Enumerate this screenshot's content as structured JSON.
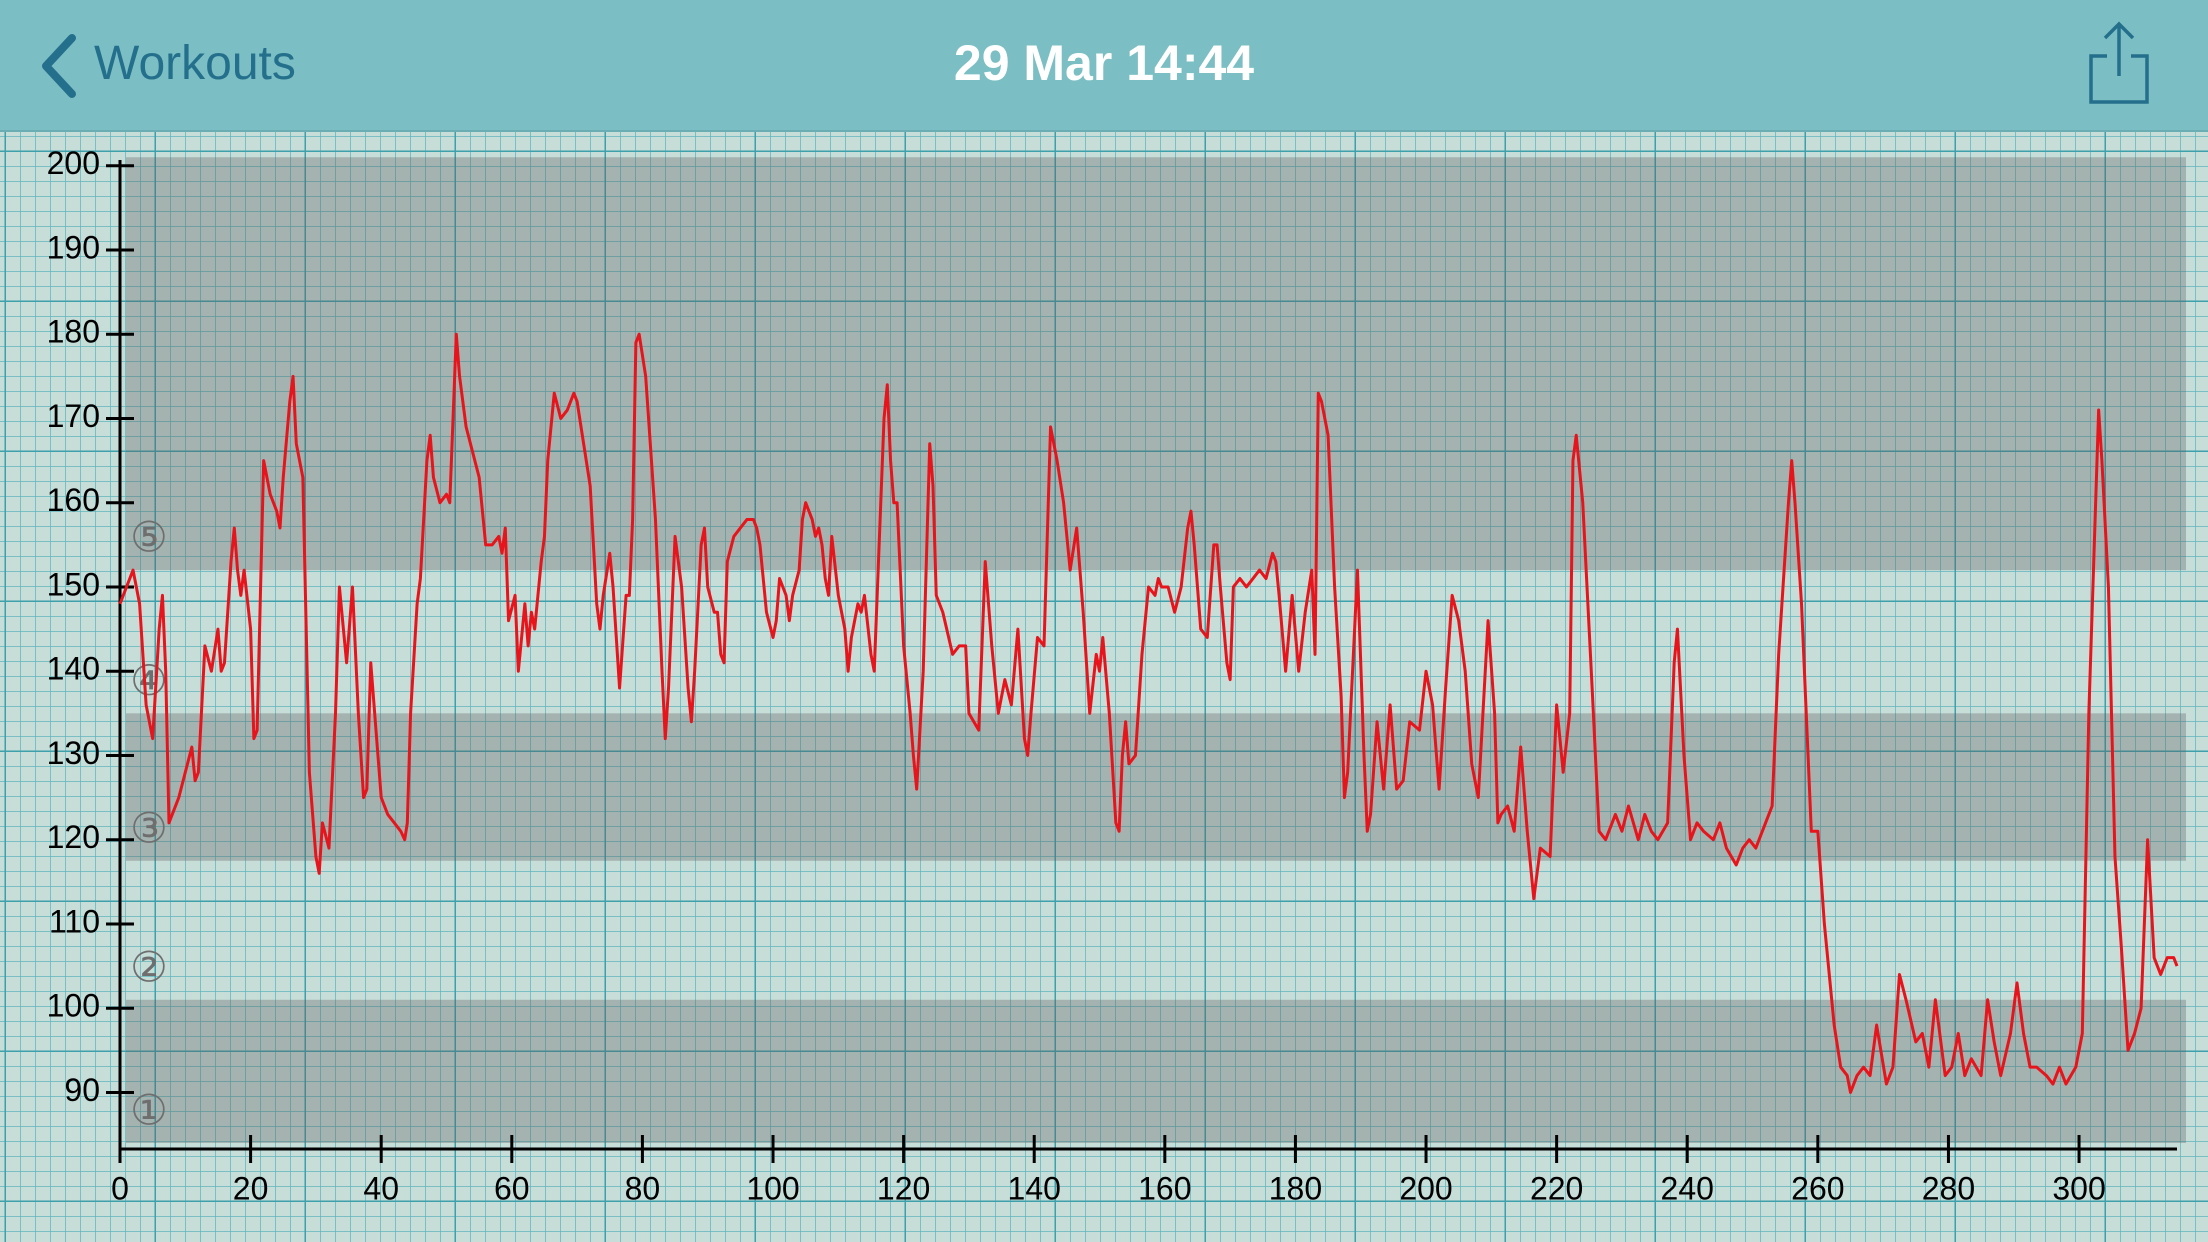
{
  "nav": {
    "back_label": "Workouts",
    "title": "29 Mar 14:44"
  },
  "chart_data": {
    "type": "line",
    "x": [
      0,
      2,
      3,
      4,
      5,
      6,
      6.5,
      7,
      7.5,
      8,
      9,
      10,
      11,
      11.5,
      12,
      13,
      14,
      15,
      15.5,
      16,
      17,
      17.5,
      18,
      18.5,
      19,
      20,
      20.5,
      21,
      22,
      23,
      24,
      24.5,
      25,
      26,
      26.5,
      27,
      28,
      29,
      30,
      30.5,
      31,
      32,
      33,
      33.6,
      34.7,
      35.6,
      36.5,
      37.3,
      37.8,
      38.4,
      39.2,
      40,
      41,
      42,
      43,
      43.6,
      44,
      44.5,
      45.5,
      46,
      47,
      47.5,
      48,
      49,
      50,
      50.5,
      51,
      51.5,
      52,
      53,
      54,
      55,
      56,
      57,
      58,
      58.5,
      59,
      59.5,
      60.5,
      61,
      62,
      62.5,
      63,
      63.5,
      64.5,
      65,
      65.5,
      66.5,
      67.5,
      68.5,
      69.5,
      70,
      71,
      72,
      73,
      73.5,
      74,
      75,
      75.5,
      76.5,
      77.5,
      78,
      78.5,
      79,
      79.5,
      80.5,
      82,
      83,
      83.5,
      84,
      85,
      86,
      87,
      87.5,
      88,
      89,
      89.5,
      90,
      91,
      91.5,
      92,
      92.5,
      93,
      94,
      95,
      96,
      97,
      97.5,
      98,
      99,
      100,
      100.5,
      101,
      102,
      102.5,
      103,
      104,
      104.5,
      105,
      106,
      106.5,
      107,
      107.5,
      108,
      108.5,
      109,
      110,
      111,
      111.5,
      112,
      113,
      113.5,
      114,
      115,
      115.5,
      116,
      117,
      117.5,
      118,
      118.5,
      119,
      120,
      121,
      121.5,
      122,
      123,
      124,
      124.5,
      125,
      126,
      127.5,
      128.5,
      129.5,
      130,
      131.5,
      132.5,
      133.5,
      134.5,
      135.5,
      136.5,
      137.5,
      138.5,
      139,
      139.5,
      140.5,
      141.5,
      142.5,
      143.5,
      144.5,
      145.5,
      146.5,
      147.5,
      148.5,
      149.5,
      150,
      150.5,
      151.5,
      152.5,
      153,
      153.5,
      154,
      154.5,
      155.5,
      156.5,
      157.5,
      158.5,
      159,
      159.5,
      160.5,
      161.5,
      162.5,
      163.5,
      164,
      164.5,
      165.5,
      166.5,
      167.5,
      168,
      168.5,
      169.5,
      170,
      170.5,
      171.5,
      172.5,
      173.5,
      174.5,
      175.5,
      176.5,
      177,
      177.5,
      178.5,
      179.5,
      180.5,
      181.5,
      182.5,
      183,
      183.5,
      184,
      185,
      186,
      187,
      187.5,
      188,
      189.5,
      190.5,
      191,
      191.5,
      192.5,
      193.5,
      194.5,
      195.5,
      196.5,
      197.5,
      199,
      200,
      201,
      202,
      203,
      204,
      205,
      206,
      207,
      208,
      209.5,
      210.5,
      211,
      211.5,
      212.5,
      213.5,
      214.5,
      215.5,
      216.5,
      217.5,
      219,
      220,
      221,
      222,
      222.5,
      223,
      224,
      225.5,
      226.5,
      227.5,
      229,
      230,
      231,
      232.5,
      233.5,
      234.5,
      235.5,
      237,
      238,
      238.5,
      239.5,
      240.5,
      241.5,
      242.5,
      244,
      245,
      246,
      247.5,
      248.5,
      249.5,
      250.5,
      252,
      253,
      254,
      255.5,
      256,
      256.5,
      257.5,
      259,
      260,
      261,
      262.5,
      263.5,
      264.5,
      265,
      266,
      267,
      268,
      269,
      270.5,
      271.5,
      272.5,
      273.5,
      275,
      276,
      277,
      278,
      279.5,
      280.5,
      281.5,
      282.5,
      283.5,
      285,
      286,
      287,
      288,
      289.5,
      290.5,
      291.5,
      292.5,
      293.5,
      295,
      296,
      297,
      298,
      299.5,
      300.5,
      301.5,
      303,
      303.5,
      304.5,
      305.5,
      306.5,
      307.5,
      308.5,
      309.5,
      310.5,
      311.5,
      312.5,
      313.5,
      314.5,
      315
    ],
    "series": [
      {
        "color": "#e8141c",
        "values": [
          148,
          152,
          148,
          136,
          132,
          145,
          149,
          140,
          122,
          123,
          125,
          128,
          131,
          127,
          128,
          143,
          140,
          145,
          140,
          141,
          153,
          157,
          152,
          149,
          152,
          145,
          132,
          133,
          165,
          161,
          159,
          157,
          163,
          172,
          175,
          167,
          163,
          128,
          118,
          116,
          122,
          119,
          135,
          150,
          141,
          150,
          135,
          125,
          126,
          141,
          133,
          125,
          123,
          122,
          121,
          120,
          122,
          135,
          148,
          151,
          165,
          168,
          163,
          160,
          161,
          160,
          170,
          180,
          175,
          169,
          166,
          163,
          155,
          155,
          156,
          154,
          157,
          146,
          149,
          140,
          148,
          143,
          147,
          145,
          153,
          156,
          165,
          173,
          170,
          171,
          173,
          172,
          167,
          162,
          148,
          145,
          149,
          154,
          150,
          138,
          149,
          149,
          158,
          179,
          180,
          175,
          158,
          140,
          132,
          138,
          156,
          150,
          138,
          134,
          140,
          155,
          157,
          150,
          147,
          147,
          142,
          141,
          153,
          156,
          157,
          158,
          158,
          157,
          155,
          147,
          144,
          146,
          151,
          149,
          146,
          149,
          152,
          158,
          160,
          158,
          156,
          157,
          155,
          151,
          149,
          156,
          149,
          145,
          140,
          144,
          148,
          147,
          149,
          142,
          140,
          150,
          170,
          174,
          165,
          160,
          160,
          143,
          135,
          130,
          126,
          140,
          167,
          162,
          149,
          147,
          142,
          143,
          143,
          135,
          133,
          153,
          143,
          135,
          139,
          136,
          145,
          132,
          130,
          135,
          144,
          143,
          169,
          165,
          160,
          152,
          157,
          147,
          135,
          142,
          140,
          144,
          135,
          122,
          121,
          130,
          134,
          129,
          130,
          142,
          150,
          149,
          151,
          150,
          150,
          147,
          150,
          157,
          159,
          155,
          145,
          144,
          155,
          155,
          150,
          141,
          139,
          150,
          151,
          150,
          151,
          152,
          151,
          154,
          153,
          149,
          140,
          149,
          140,
          147,
          152,
          142,
          173,
          172,
          168,
          150,
          137,
          125,
          128,
          152,
          130,
          121,
          123,
          134,
          126,
          136,
          126,
          127,
          134,
          133,
          140,
          136,
          126,
          138,
          149,
          146,
          140,
          129,
          125,
          146,
          135,
          122,
          123,
          124,
          121,
          131,
          121,
          113,
          119,
          118,
          136,
          128,
          135,
          165,
          168,
          160,
          137,
          121,
          120,
          123,
          121,
          124,
          120,
          123,
          121,
          120,
          122,
          141,
          145,
          130,
          120,
          122,
          121,
          120,
          122,
          119,
          117,
          119,
          120,
          119,
          122,
          124,
          142,
          160,
          165,
          160,
          148,
          121,
          121,
          110,
          98,
          93,
          92,
          90,
          92,
          93,
          92,
          98,
          91,
          93,
          104,
          101,
          96,
          97,
          93,
          101,
          92,
          93,
          97,
          92,
          94,
          92,
          101,
          96,
          92,
          97,
          103,
          97,
          93,
          93,
          92,
          91,
          93,
          91,
          93,
          97,
          135,
          171,
          165,
          150,
          118,
          107,
          95,
          97,
          100,
          120,
          106,
          104,
          106,
          106,
          105
        ]
      }
    ],
    "xlim": [
      0,
      315
    ],
    "ylim": [
      84,
      204
    ],
    "xticks": [
      0,
      20,
      40,
      60,
      80,
      100,
      120,
      140,
      160,
      180,
      200,
      220,
      240,
      260,
      280,
      300
    ],
    "yticks": [
      90,
      100,
      110,
      120,
      130,
      140,
      150,
      160,
      170,
      180,
      190,
      200
    ],
    "zones": [
      {
        "label": "①",
        "from": 84,
        "to": 101,
        "shaded": true
      },
      {
        "label": "②",
        "from": 101,
        "to": 117.5,
        "shaded": false
      },
      {
        "label": "③",
        "from": 117.5,
        "to": 135,
        "shaded": true
      },
      {
        "label": "④",
        "from": 135,
        "to": 152,
        "shaded": false
      },
      {
        "label": "⑤",
        "from": 152,
        "to": 201,
        "shaded": true
      }
    ]
  }
}
